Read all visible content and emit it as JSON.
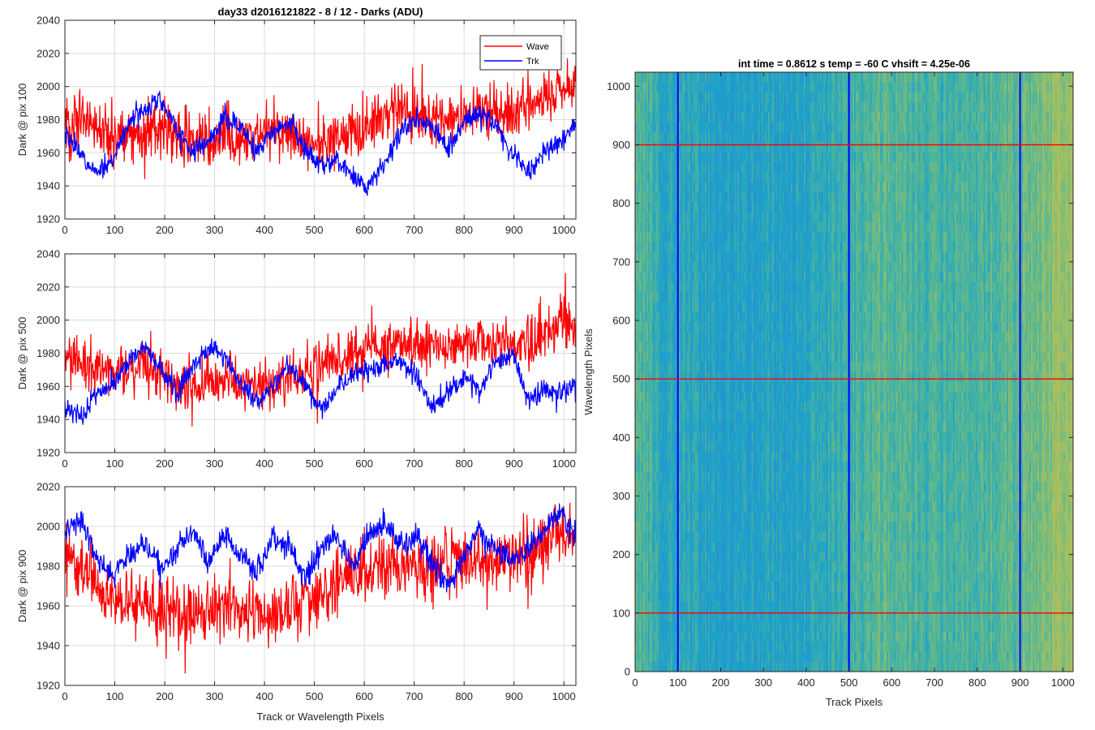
{
  "figure": {
    "title": "day33 d2016121822 - 8 / 12 - Darks (ADU)"
  },
  "colors": {
    "wave": "#ff0000",
    "trk": "#0000ff",
    "grid": "#dcdcdc",
    "axis": "#262626"
  },
  "chart_data": [
    {
      "type": "line",
      "panel": "top",
      "title": "day33 d2016121822 - 8 / 12 - Darks (ADU)",
      "xlabel": "",
      "ylabel": "Dark @ pix 100",
      "xlim": [
        0,
        1024
      ],
      "ylim": [
        1920,
        2040
      ],
      "x_ticks": [
        0,
        100,
        200,
        300,
        400,
        500,
        600,
        700,
        800,
        900,
        1000
      ],
      "y_ticks": [
        1920,
        1940,
        1960,
        1980,
        2000,
        2020,
        2040
      ],
      "grid": true,
      "legend": {
        "placement": "top-right",
        "entries": [
          "Wave",
          "Trk"
        ]
      },
      "series": [
        {
          "name": "Wave",
          "color": "#ff0000",
          "x_step": 32,
          "trend": [
            1978,
            1980,
            1975,
            1972,
            1970,
            1971,
            1974,
            1970,
            1966,
            1968,
            1970,
            1969,
            1972,
            1975,
            1972,
            1968,
            1965,
            1967,
            1972,
            1976,
            1982,
            1985,
            1983,
            1982,
            1980,
            1983,
            1986,
            1984,
            1986,
            1988,
            1992,
            1998,
            2002
          ],
          "noise": 13
        },
        {
          "name": "Trk",
          "color": "#0000ff",
          "x_step": 32,
          "trend": [
            1972,
            1958,
            1948,
            1955,
            1978,
            1986,
            1992,
            1974,
            1960,
            1968,
            1982,
            1975,
            1960,
            1972,
            1980,
            1962,
            1952,
            1956,
            1946,
            1938,
            1955,
            1972,
            1980,
            1976,
            1962,
            1978,
            1986,
            1976,
            1960,
            1948,
            1960,
            1966,
            1978
          ],
          "noise": 5
        }
      ]
    },
    {
      "type": "line",
      "panel": "middle",
      "xlabel": "",
      "ylabel": "Dark @ pix 500",
      "xlim": [
        0,
        1024
      ],
      "ylim": [
        1920,
        2040
      ],
      "x_ticks": [
        0,
        100,
        200,
        300,
        400,
        500,
        600,
        700,
        800,
        900,
        1000
      ],
      "y_ticks": [
        1920,
        1940,
        1960,
        1980,
        2000,
        2020,
        2040
      ],
      "grid": true,
      "series": [
        {
          "name": "Wave",
          "color": "#ff0000",
          "x_step": 32,
          "trend": [
            1978,
            1976,
            1972,
            1968,
            1970,
            1972,
            1968,
            1962,
            1960,
            1962,
            1965,
            1963,
            1960,
            1962,
            1965,
            1968,
            1972,
            1978,
            1982,
            1984,
            1983,
            1982,
            1984,
            1986,
            1985,
            1986,
            1988,
            1987,
            1985,
            1988,
            1992,
            1996,
            1998
          ],
          "noise": 12
        },
        {
          "name": "Trk",
          "color": "#0000ff",
          "x_step": 32,
          "trend": [
            1950,
            1942,
            1955,
            1962,
            1975,
            1984,
            1970,
            1956,
            1972,
            1984,
            1978,
            1962,
            1950,
            1960,
            1974,
            1962,
            1945,
            1958,
            1968,
            1970,
            1972,
            1975,
            1966,
            1948,
            1956,
            1966,
            1958,
            1975,
            1980,
            1950,
            1958,
            1956,
            1962
          ],
          "noise": 5
        }
      ]
    },
    {
      "type": "line",
      "panel": "bottom",
      "xlabel": "Track or Wavelength Pixels",
      "ylabel": "Dark @ pix 900",
      "xlim": [
        0,
        1024
      ],
      "ylim": [
        1920,
        2020
      ],
      "x_ticks": [
        0,
        100,
        200,
        300,
        400,
        500,
        600,
        700,
        800,
        900,
        1000
      ],
      "y_ticks": [
        1920,
        1940,
        1960,
        1980,
        2000,
        2020
      ],
      "grid": true,
      "series": [
        {
          "name": "Wave",
          "color": "#ff0000",
          "x_step": 32,
          "trend": [
            1985,
            1978,
            1970,
            1965,
            1962,
            1960,
            1958,
            1956,
            1955,
            1958,
            1960,
            1957,
            1955,
            1952,
            1956,
            1962,
            1966,
            1970,
            1974,
            1976,
            1978,
            1980,
            1981,
            1980,
            1982,
            1984,
            1983,
            1982,
            1985,
            1988,
            1990,
            1994,
            1995
          ],
          "noise": 13
        },
        {
          "name": "Trk",
          "color": "#0000ff",
          "x_step": 32,
          "trend": [
            1998,
            2004,
            1984,
            1975,
            1985,
            1992,
            1978,
            1988,
            1998,
            1982,
            1996,
            1985,
            1976,
            1994,
            1990,
            1975,
            1988,
            1995,
            1980,
            1996,
            2002,
            1990,
            1995,
            1982,
            1970,
            1985,
            1998,
            1988,
            1982,
            1990,
            1998,
            2008,
            1995
          ],
          "noise": 5
        }
      ]
    },
    {
      "type": "heatmap",
      "panel": "image",
      "title": "int time = 0.8612 s    temp = -60 C    vhsift = 4.25e-06",
      "xlabel": "Track Pixels",
      "ylabel": "Wavelength Pixels",
      "xlim": [
        0,
        1024
      ],
      "ylim": [
        0,
        1024
      ],
      "x_ticks": [
        0,
        100,
        200,
        300,
        400,
        500,
        600,
        700,
        800,
        900,
        1000
      ],
      "y_ticks": [
        0,
        100,
        200,
        300,
        400,
        500,
        600,
        700,
        800,
        900,
        1000
      ],
      "colormap_stops": [
        "#2a8bd6",
        "#1ea2c8",
        "#4fb59a",
        "#93bf6a",
        "#c2be55"
      ],
      "column_level_profile": [
        0.55,
        0.45,
        0.32,
        0.3,
        0.28,
        0.26,
        0.25,
        0.24,
        0.23,
        0.23,
        0.24,
        0.26,
        0.28,
        0.3,
        0.33,
        0.38,
        0.45,
        0.5,
        0.52,
        0.5,
        0.48,
        0.46,
        0.45,
        0.44,
        0.45,
        0.48,
        0.5,
        0.52,
        0.55,
        0.62,
        0.7,
        0.75,
        0.8
      ],
      "vertical_markers": [
        100,
        500,
        900
      ],
      "horizontal_markers": [
        100,
        500,
        900
      ],
      "vertical_marker_color": "#0000ff",
      "horizontal_marker_color": "#ff0000"
    }
  ]
}
